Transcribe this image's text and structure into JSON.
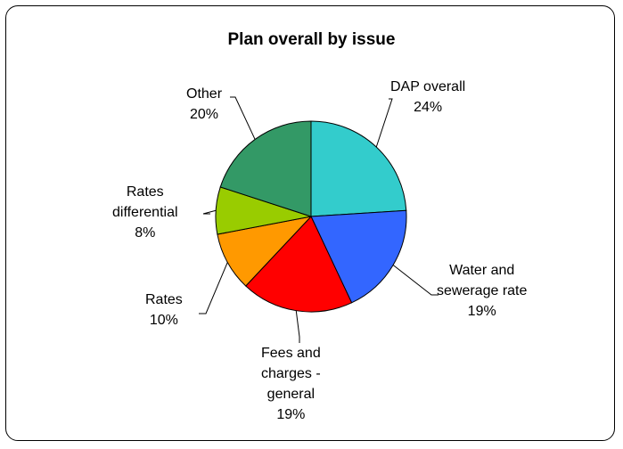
{
  "chart_data": {
    "type": "pie",
    "title": "Plan overall by issue",
    "slices": [
      {
        "name": "DAP overall",
        "value": 24,
        "label_lines": [
          "DAP overall",
          "24%"
        ],
        "color": "#33CCCC"
      },
      {
        "name": "Water and sewerage rate",
        "value": 19,
        "label_lines": [
          "Water and",
          "sewerage rate",
          "19%"
        ],
        "color": "#3366FF"
      },
      {
        "name": "Fees and charges - general",
        "value": 19,
        "label_lines": [
          "Fees and",
          "charges -",
          "general",
          "19%"
        ],
        "color": "#FF0000"
      },
      {
        "name": "Rates",
        "value": 10,
        "label_lines": [
          "Rates",
          "10%"
        ],
        "color": "#FF9900"
      },
      {
        "name": "Rates differential",
        "value": 8,
        "label_lines": [
          "Rates",
          "differential",
          "8%"
        ],
        "color": "#99CC00"
      },
      {
        "name": "Other",
        "value": 20,
        "label_lines": [
          "Other",
          "20%"
        ],
        "color": "#339966"
      }
    ],
    "legend": "none"
  }
}
